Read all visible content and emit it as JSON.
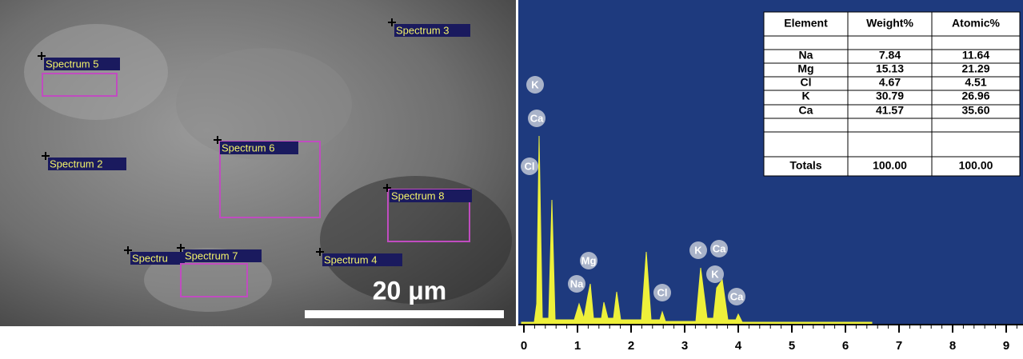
{
  "sem_image": {
    "labels": [
      "Spectrum 3",
      "Spectrum 5",
      "Spectrum 2",
      "Spectrum 6",
      "Spectrum 8",
      "Spectru",
      "Spectrum 7",
      "Spectrum 4"
    ],
    "scale_bar": "20 μm"
  },
  "eds_table": {
    "header": [
      "Element",
      "Weight%",
      "Atomic%"
    ],
    "rows": [
      [
        "Na",
        "7.84",
        "11.64"
      ],
      [
        "Mg",
        "15.13",
        "21.29"
      ],
      [
        "Cl",
        "4.67",
        "4.51"
      ],
      [
        "K",
        "30.79",
        "26.96"
      ],
      [
        "Ca",
        "41.57",
        "35.60"
      ],
      [
        "Totals",
        "100.00",
        "100.00"
      ]
    ]
  },
  "spectrum": {
    "xlim": [
      0,
      9.3
    ],
    "xticks": [
      0,
      1,
      2,
      3,
      4,
      5,
      6,
      7,
      8,
      9
    ],
    "peak_labels": [
      "K",
      "Ca",
      "Cl",
      "Mg",
      "Na",
      "Cl",
      "K",
      "Ca",
      "K",
      "Ca"
    ]
  }
}
